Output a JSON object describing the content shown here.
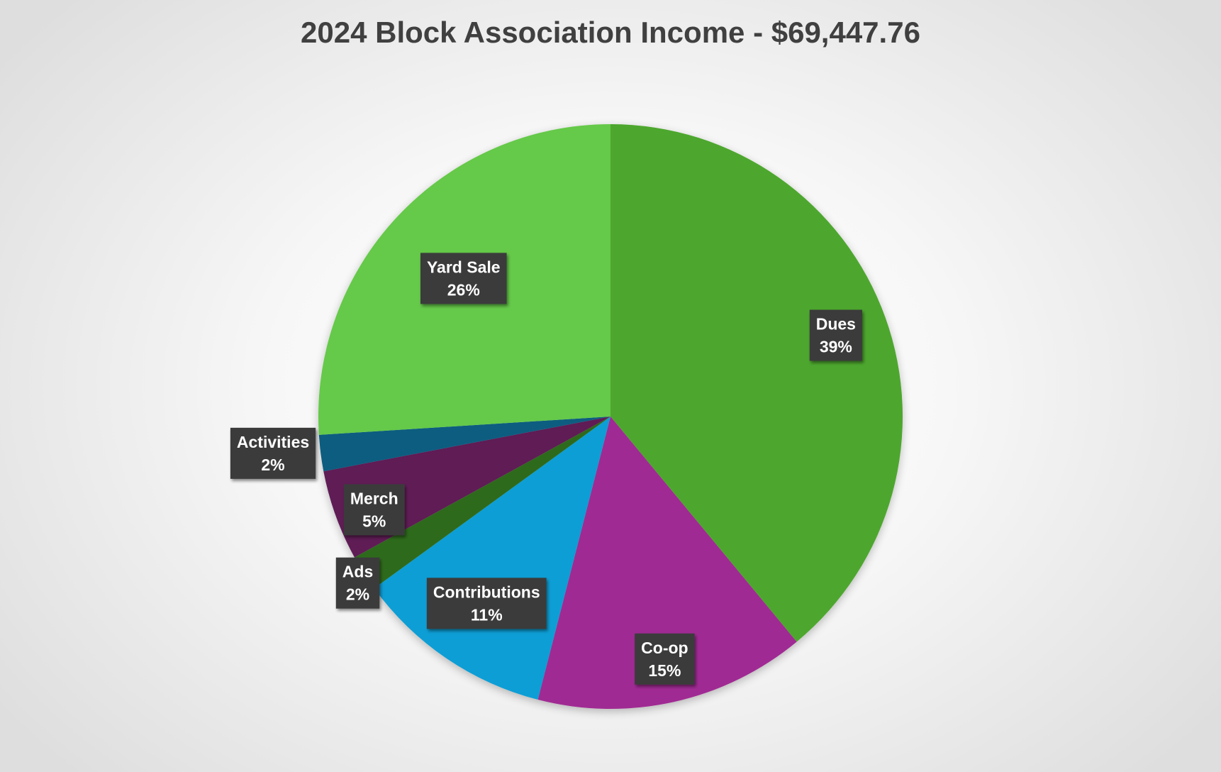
{
  "chart_data": {
    "type": "pie",
    "title": "2024 Block Association Income - $69,447.76",
    "slices": [
      {
        "label": "Dues",
        "value": 39,
        "display": "39%",
        "color": "#4ea72e"
      },
      {
        "label": "Co-op",
        "value": 15,
        "display": "15%",
        "color": "#a02b93"
      },
      {
        "label": "Contributions",
        "value": 11,
        "display": "11%",
        "color": "#0f9ed5"
      },
      {
        "label": "Ads",
        "value": 2,
        "display": "2%",
        "color": "#2d6a1e"
      },
      {
        "label": "Merch",
        "value": 5,
        "display": "5%",
        "color": "#5e1a54"
      },
      {
        "label": "Activities",
        "value": 2,
        "display": "2%",
        "color": "#075d80"
      },
      {
        "label": "Yard Sale",
        "value": 26,
        "display": "26%",
        "color": "#65c94a"
      }
    ],
    "start_angle_deg": 0,
    "direction": "clockwise",
    "legend": "none",
    "data_labels": "category and percentage"
  }
}
